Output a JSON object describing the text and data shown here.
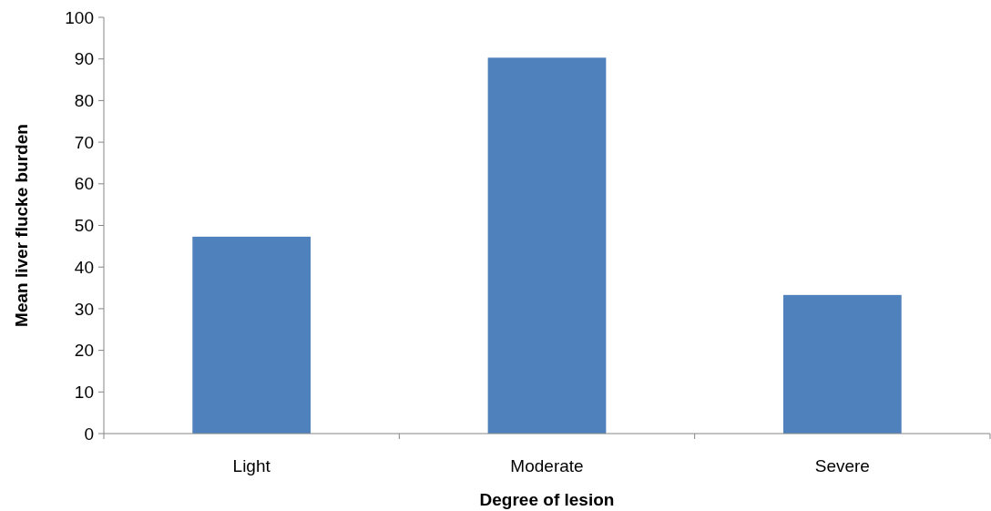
{
  "chart_data": {
    "type": "bar",
    "xlabel": "Degree of lesion",
    "ylabel": "Mean liver flucke burden",
    "categories": [
      "Light",
      "Moderate",
      "Severe"
    ],
    "values": [
      47.3,
      90.3,
      33.3
    ],
    "color": "#4f81bd",
    "ylim": [
      0,
      100
    ],
    "yticks": [
      0,
      10,
      20,
      30,
      40,
      50,
      60,
      70,
      80,
      90,
      100
    ],
    "grid": false
  }
}
